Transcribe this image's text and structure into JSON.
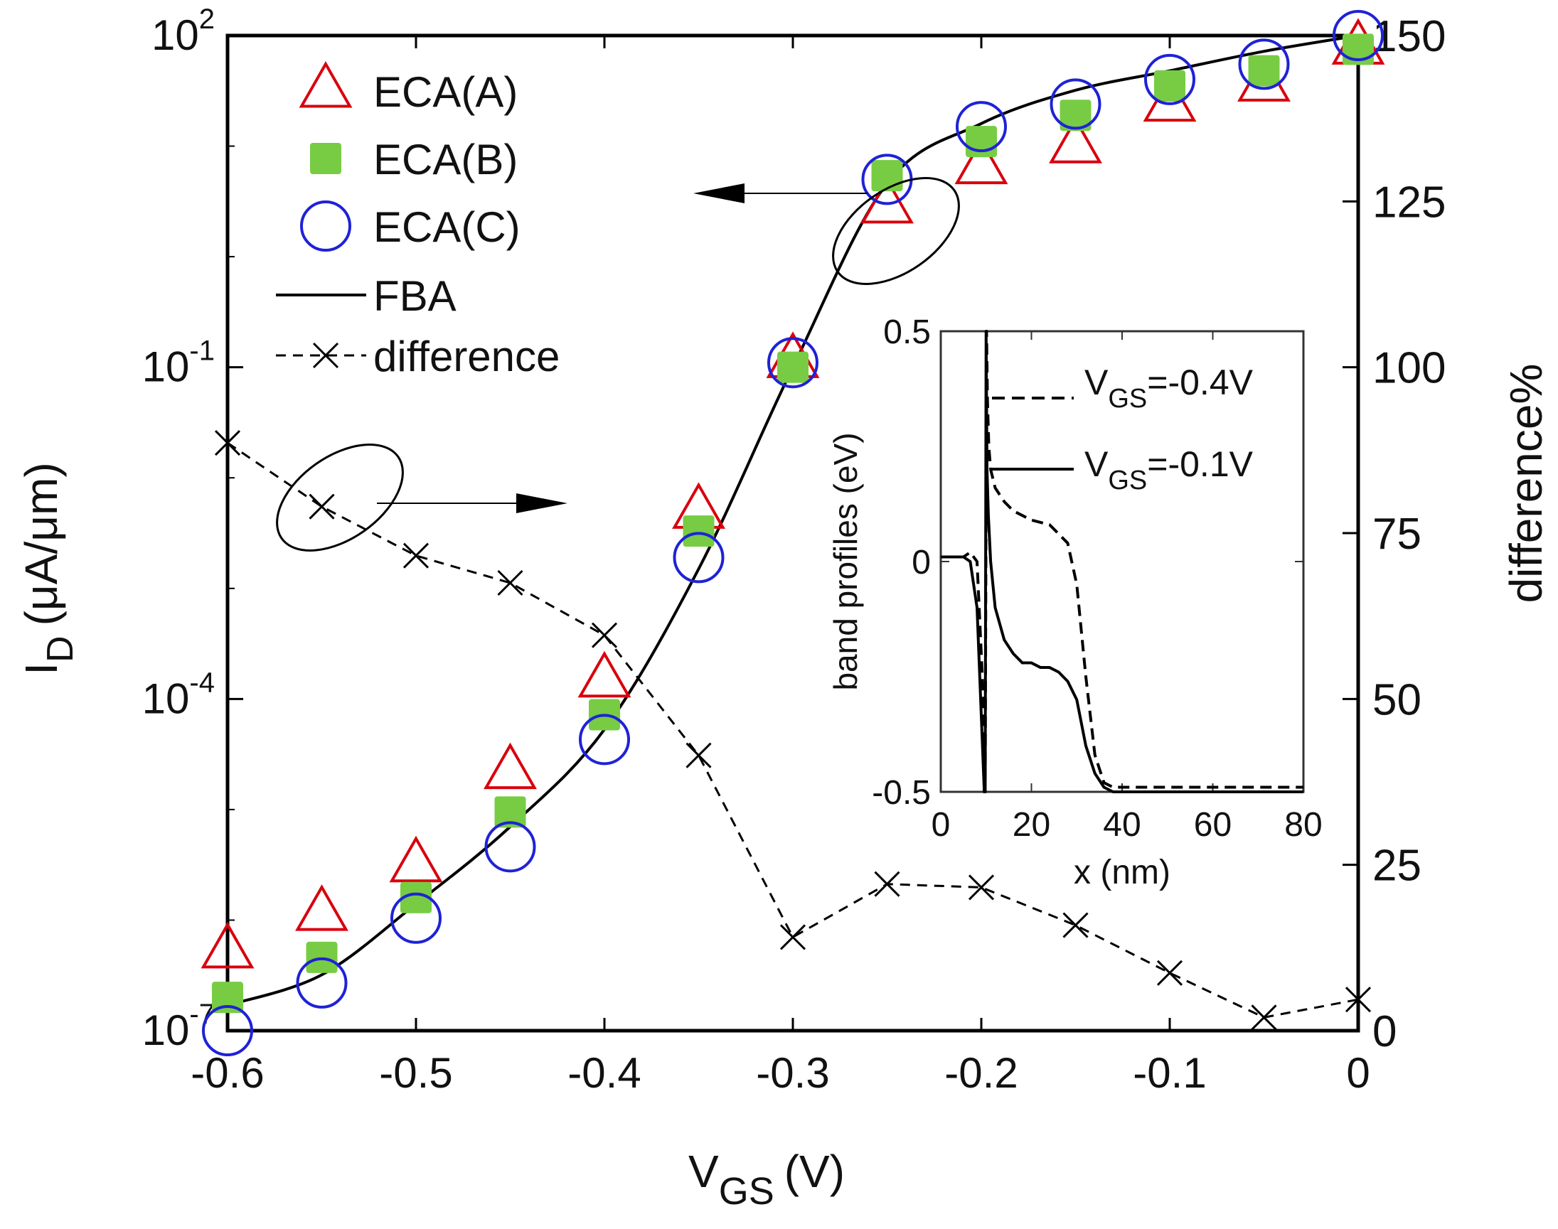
{
  "chart_data": [
    {
      "type": "scatter+line",
      "title": "",
      "xlabel": {
        "main": "V",
        "sub": "GS",
        "unit": "(V)"
      },
      "ylabel_left": {
        "main": "I",
        "sub": "D",
        "unit": "(μA/μm)"
      },
      "ylabel_right": "difference%",
      "xlim": [
        -0.6,
        0
      ],
      "ylim_left_log10": [
        -7,
        2
      ],
      "ylim_right": [
        0,
        150
      ],
      "x_ticks": [
        "-0.6",
        "-0.5",
        "-0.4",
        "-0.3",
        "-0.2",
        "-0.1",
        "0"
      ],
      "y_left_ticks": [
        {
          "base": "10",
          "exp": "2",
          "log": 2
        },
        {
          "base": "10",
          "exp": "-1",
          "log": -1
        },
        {
          "base": "10",
          "exp": "-4",
          "log": -4
        },
        {
          "base": "10",
          "exp": "-7",
          "log": -7
        }
      ],
      "y_right_ticks": [
        "150",
        "125",
        "100",
        "75",
        "50",
        "25",
        "0"
      ],
      "x": [
        -0.6,
        -0.55,
        -0.5,
        -0.45,
        -0.4,
        -0.35,
        -0.3,
        -0.25,
        -0.2,
        -0.15,
        -0.1,
        -0.05,
        0
      ],
      "series": [
        {
          "name": "ECA(A)",
          "marker": "triangle",
          "color": "#d9000d",
          "axis": "left",
          "values": [
            5.5e-07,
            1.2e-06,
            3.3e-06,
            2.3e-05,
            0.000155,
            0.0052,
            0.12,
            3.0,
            6.8,
            10.5,
            25,
            38,
            82
          ]
        },
        {
          "name": "ECA(B)",
          "marker": "filled-square",
          "color": "#77cc44",
          "axis": "left",
          "values": [
            2e-07,
            4.6e-07,
            1.6e-06,
            9.5e-06,
            7.2e-05,
            0.0033,
            0.1,
            5.4,
            11,
            19,
            35,
            48,
            75
          ]
        },
        {
          "name": "ECA(C)",
          "marker": "circle",
          "color": "#1f22d6",
          "axis": "left",
          "values": [
            1e-07,
            2.7e-07,
            1.04e-06,
            4.6e-06,
            4.3e-05,
            0.0019,
            0.11,
            5.0,
            15,
            24,
            40,
            55,
            100
          ]
        },
        {
          "name": "FBA",
          "marker": "solid-line",
          "color": "#000000",
          "axis": "left",
          "values": [
            1.7e-07,
            3.2e-07,
            1.4e-06,
            7e-06,
            5.3e-05,
            0.0015,
            0.1,
            4.6,
            16,
            32,
            48,
            72,
            100
          ]
        },
        {
          "name": "difference",
          "marker": "x-dashed",
          "color": "#000000",
          "axis": "right",
          "values": [
            88.6,
            79,
            71.6,
            67.5,
            59.6,
            41.5,
            14.1,
            22.1,
            21.6,
            15.9,
            8.7,
            2.0,
            4.7
          ]
        }
      ],
      "legend": {
        "position": "top-left",
        "entries": [
          "ECA(A)",
          "ECA(B)",
          "ECA(C)",
          "FBA",
          "difference"
        ]
      }
    },
    {
      "type": "line",
      "title": "",
      "xlabel": "x (nm)",
      "ylabel": "band profiles (eV)",
      "xlim": [
        0,
        80
      ],
      "ylim": [
        -0.5,
        0.5
      ],
      "x_ticks": [
        "0",
        "20",
        "40",
        "60",
        "80"
      ],
      "y_ticks": [
        "0.5",
        "0",
        "-0.5"
      ],
      "series": [
        {
          "name": "V_GS=-0.4V",
          "style": "dashed",
          "label": {
            "main": "V",
            "sub": "GS",
            "rest": "=-0.4V"
          },
          "x": [
            0,
            5,
            6.5,
            8,
            9.4,
            9.6,
            9.8,
            10.1,
            10.3,
            10.6,
            11,
            12,
            14,
            16,
            18,
            20,
            24,
            28,
            30,
            32,
            34,
            36,
            38,
            40,
            50,
            60,
            70,
            80
          ],
          "y": [
            0.01,
            0.01,
            0.02,
            0.0,
            -0.3,
            -0.5,
            -0.5,
            0.5,
            0.35,
            0.25,
            0.2,
            0.16,
            0.13,
            0.11,
            0.1,
            0.09,
            0.08,
            0.04,
            -0.05,
            -0.25,
            -0.42,
            -0.48,
            -0.49,
            -0.49,
            -0.49,
            -0.49,
            -0.49,
            -0.49
          ]
        },
        {
          "name": "V_GS=-0.1V",
          "style": "solid",
          "label": {
            "main": "V",
            "sub": "GS",
            "rest": "=-0.1V"
          },
          "x": [
            0,
            5,
            6.5,
            8,
            9.2,
            9.6,
            9.8,
            10.0,
            10.2,
            10.5,
            11,
            12,
            14,
            16,
            18,
            20,
            22,
            24,
            26,
            28,
            30,
            32,
            34,
            36,
            38,
            40,
            50,
            60,
            70,
            80
          ],
          "y": [
            0.01,
            0.01,
            0.0,
            -0.1,
            -0.4,
            -0.5,
            -0.5,
            0.5,
            0.2,
            0.1,
            0.0,
            -0.1,
            -0.17,
            -0.2,
            -0.22,
            -0.22,
            -0.23,
            -0.23,
            -0.24,
            -0.26,
            -0.3,
            -0.4,
            -0.46,
            -0.49,
            -0.5,
            -0.5,
            -0.5,
            -0.5,
            -0.5,
            -0.5
          ]
        }
      ]
    }
  ]
}
